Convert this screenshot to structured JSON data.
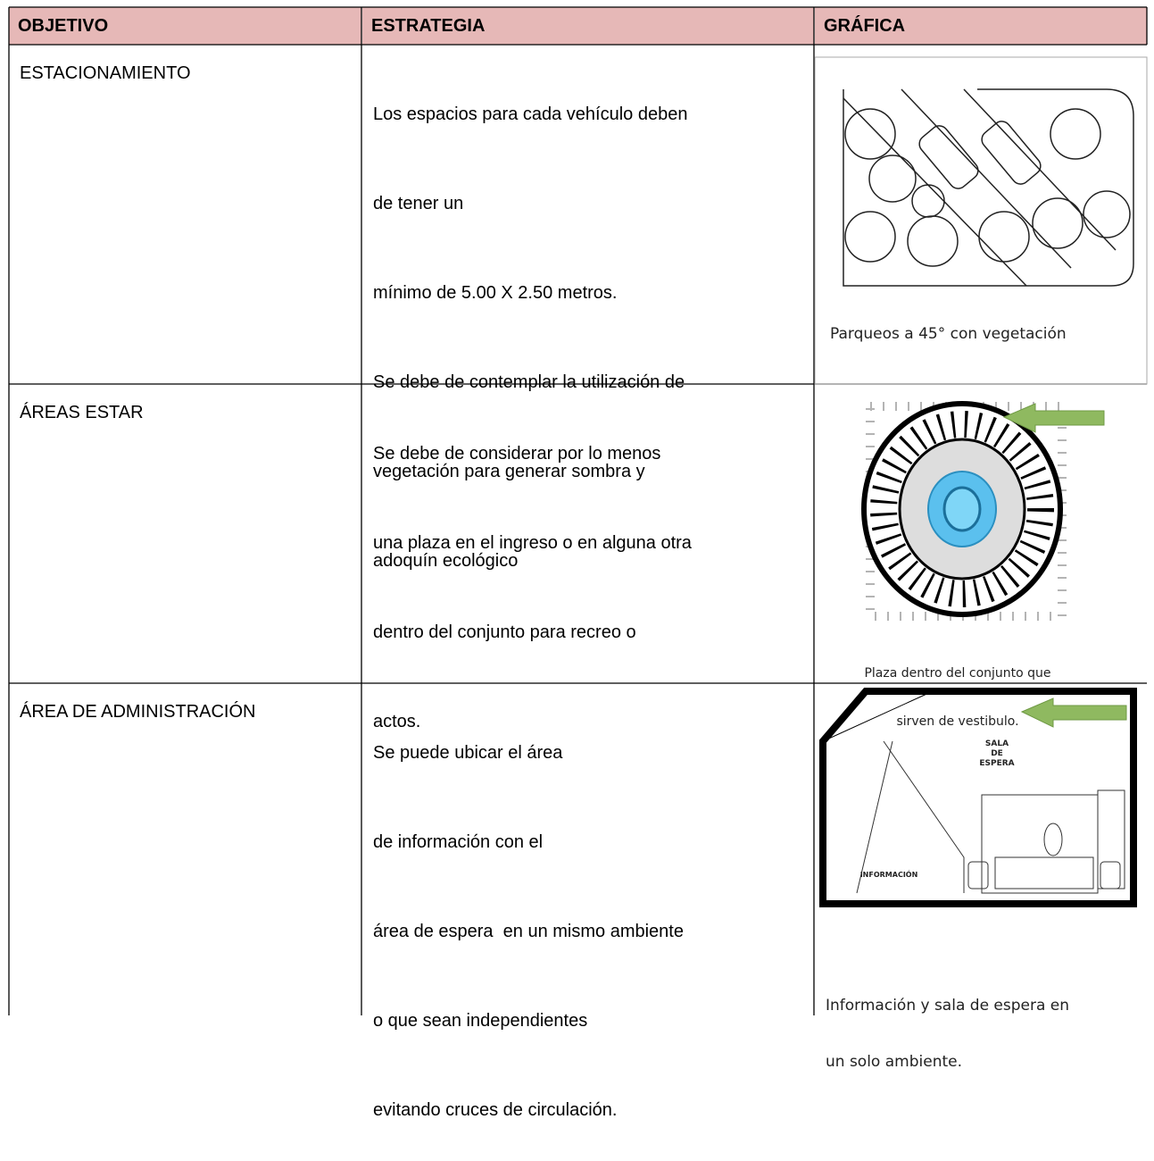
{
  "table": {
    "header": [
      "OBJETIVO",
      "ESTRATEGIA",
      "GRÁFICA"
    ],
    "rows": [
      {
        "objetivo": "ESTACIONAMIENTO",
        "estrategia": [
          "Los espacios para cada vehículo deben",
          "de tener un",
          "mínimo de 5.00 X 2.50 metros.",
          "Se debe de contemplar la utilización de",
          "vegetación para generar sombra y",
          "adoquín ecológico"
        ],
        "grafica": {
          "caption": [
            "Parqueos a 45° con vegetación"
          ]
        }
      },
      {
        "objetivo": "ÁREAS ESTAR",
        "estrategia": [
          "Se debe de considerar por lo menos",
          "una plaza en el ingreso o en alguna otra",
          "dentro del conjunto para recreo o",
          "actos."
        ],
        "grafica": {
          "caption": [
            "Plaza dentro del conjunto que",
            "sirven de vestibulo."
          ]
        }
      },
      {
        "objetivo": "ÁREA DE ADMINISTRACIÓN",
        "estrategia": [
          "Se puede ubicar el área",
          "de información con el",
          "área de espera  en un mismo ambiente",
          "o que sean independientes",
          "evitando cruces de circulación."
        ],
        "grafica": {
          "labels": [
            "SALA",
            "DE",
            "ESPERA",
            "INFORMACIÓN"
          ],
          "caption": [
            "Información y sala de espera en",
            "un solo ambiente."
          ]
        }
      }
    ]
  }
}
